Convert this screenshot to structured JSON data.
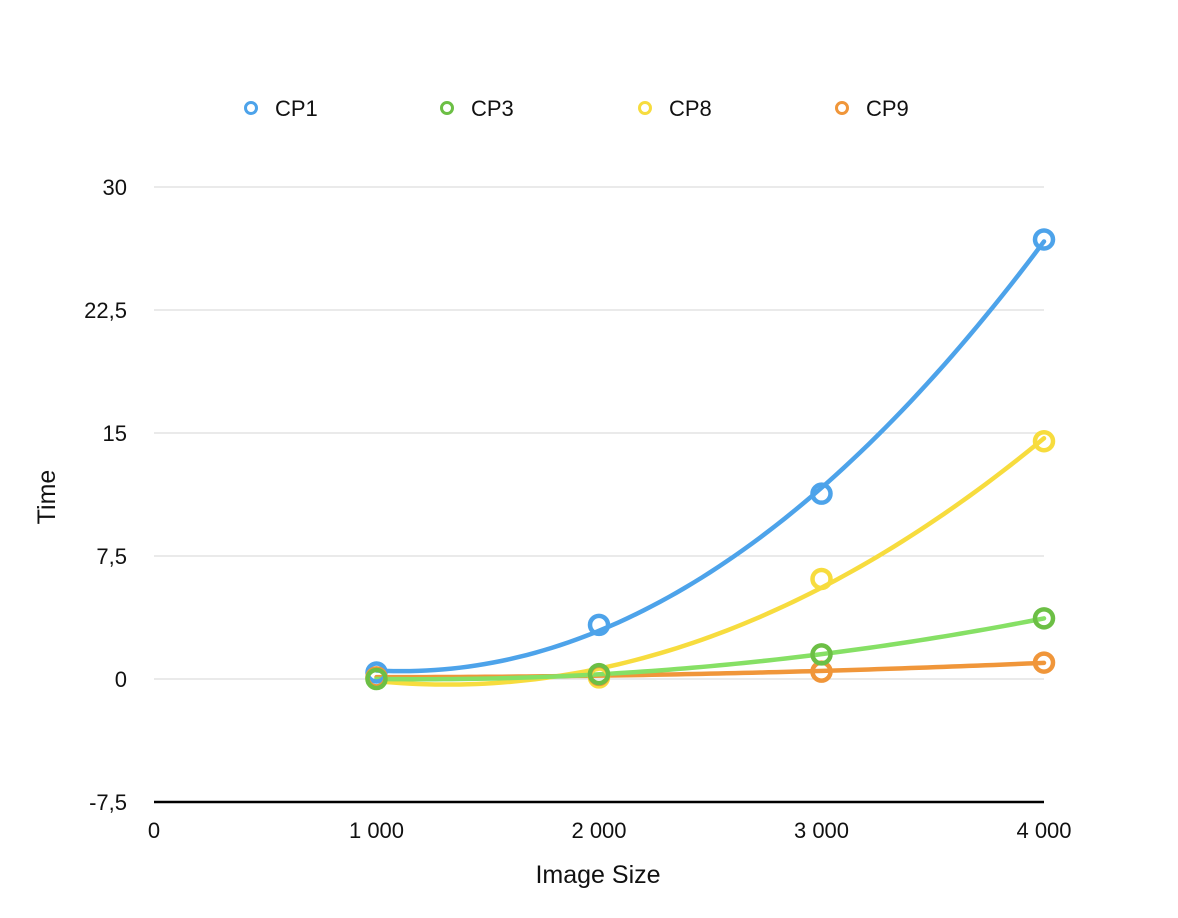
{
  "chart_data": {
    "type": "line",
    "title": "",
    "xlabel": "Image Size",
    "ylabel": "Time",
    "xlim": [
      0,
      4000
    ],
    "ylim": [
      -7.5,
      30
    ],
    "x_ticks": [
      0,
      1000,
      2000,
      3000,
      4000
    ],
    "x_tick_labels": [
      "0",
      "1 000",
      "2 000",
      "3 000",
      "4 000"
    ],
    "y_ticks": [
      -7.5,
      0,
      7.5,
      15,
      22.5,
      30
    ],
    "y_tick_labels": [
      "-7,5",
      "0",
      "7,5",
      "15",
      "22,5",
      "30"
    ],
    "grid": true,
    "legend_position": "top",
    "x": [
      1000,
      2000,
      3000,
      4000
    ],
    "series": [
      {
        "name": "CP1",
        "color": "#4DA3EA",
        "line_color": "#4DA3EA",
        "values": [
          0.4,
          3.3,
          11.3,
          26.8
        ]
      },
      {
        "name": "CP3",
        "color": "#6CBF45",
        "line_color": "#86E065",
        "values": [
          0.0,
          0.3,
          1.5,
          3.7
        ]
      },
      {
        "name": "CP8",
        "color": "#F7DC3E",
        "line_color": "#F7DC3E",
        "values": [
          0.05,
          0.1,
          6.1,
          14.5
        ]
      },
      {
        "name": "CP9",
        "color": "#F0963A",
        "line_color": "#F0963A",
        "values": [
          0.1,
          0.25,
          0.45,
          1.0
        ]
      }
    ]
  }
}
